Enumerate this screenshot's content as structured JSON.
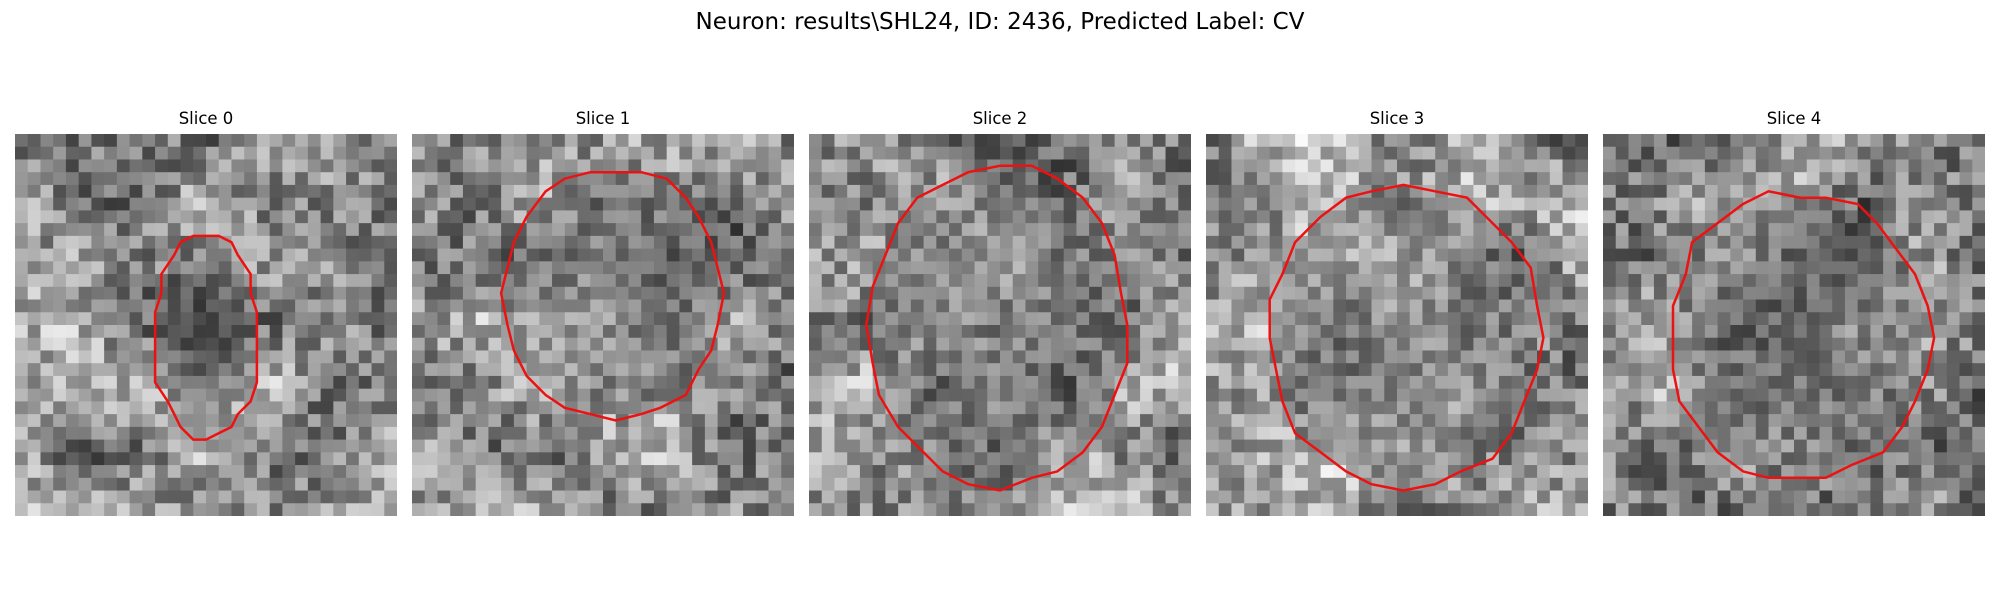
{
  "figure": {
    "title": "Neuron: results\\SHL24, ID: 2436, Predicted Label: CV"
  },
  "colors": {
    "background": "#ffffff",
    "contour": "#ee1111",
    "image_colormap": "gray"
  },
  "panels": [
    {
      "title": "Slice 0",
      "seed": 11,
      "contour_center": [
        0.5,
        0.53
      ],
      "contour_radius": [
        0.14,
        0.27
      ],
      "pixel_grid": 30,
      "dark_core": true
    },
    {
      "title": "Slice 1",
      "seed": 23,
      "contour_center": [
        0.53,
        0.42
      ],
      "contour_radius": [
        0.29,
        0.33
      ],
      "pixel_grid": 30,
      "dark_core": false
    },
    {
      "title": "Slice 2",
      "seed": 37,
      "contour_center": [
        0.5,
        0.5
      ],
      "contour_radius": [
        0.34,
        0.42
      ],
      "pixel_grid": 30,
      "dark_core": false
    },
    {
      "title": "Slice 3",
      "seed": 41,
      "contour_center": [
        0.52,
        0.53
      ],
      "contour_radius": [
        0.36,
        0.4
      ],
      "pixel_grid": 30,
      "dark_core": false
    },
    {
      "title": "Slice 4",
      "seed": 53,
      "contour_center": [
        0.51,
        0.53
      ],
      "contour_radius": [
        0.34,
        0.38
      ],
      "pixel_grid": 30,
      "dark_core": false
    }
  ]
}
